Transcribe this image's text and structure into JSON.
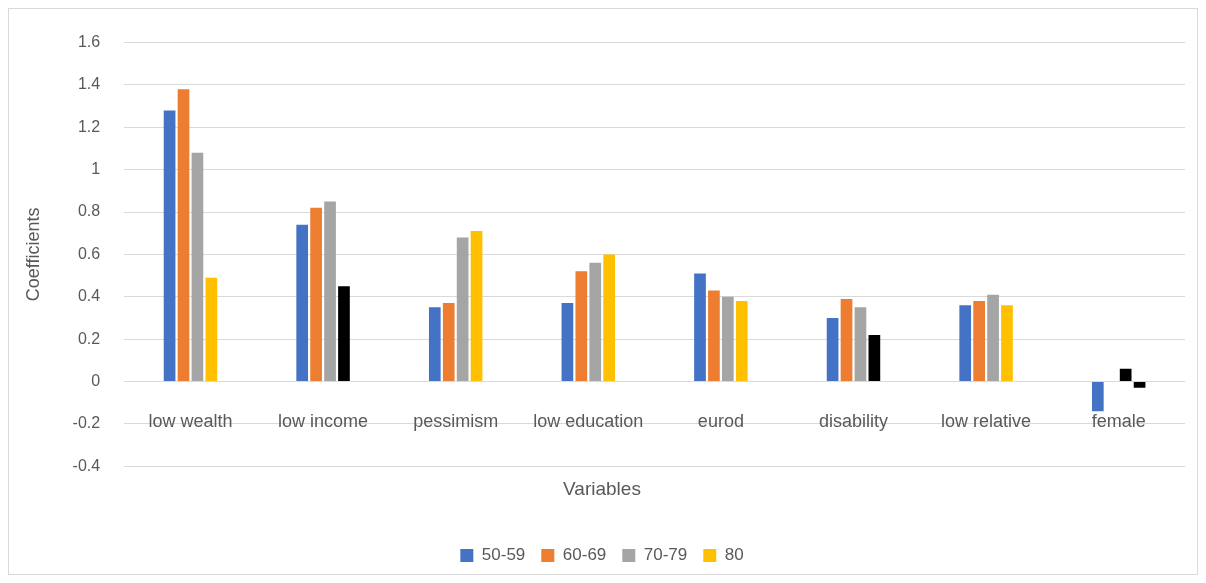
{
  "chart_data": {
    "type": "bar",
    "xlabel": "Variables",
    "ylabel": "Coefficients",
    "categories": [
      "low wealth",
      "low income",
      "pessimism",
      "low education",
      "eurod",
      "disability",
      "low relative",
      "female"
    ],
    "series": [
      {
        "name": "50-59",
        "color": "#4472c4",
        "values": [
          1.28,
          0.74,
          0.35,
          0.37,
          0.51,
          0.3,
          0.36,
          -0.14
        ]
      },
      {
        "name": "60-69",
        "color": "#ed7d31",
        "values": [
          1.38,
          0.82,
          0.37,
          0.52,
          0.43,
          0.39,
          0.38,
          null
        ]
      },
      {
        "name": "70-79",
        "color": "#a5a5a5",
        "colors": [
          "#a5a5a5",
          "#a5a5a5",
          "#a5a5a5",
          "#a5a5a5",
          "#a5a5a5",
          "#a5a5a5",
          "#a5a5a5",
          "#000000"
        ],
        "values": [
          1.08,
          0.85,
          0.68,
          0.56,
          0.4,
          0.35,
          0.41,
          0.06
        ]
      },
      {
        "name": "80",
        "color": "#ffc000",
        "colors": [
          "#ffc000",
          "#000000",
          "#ffc000",
          "#ffc000",
          "#ffc000",
          "#000000",
          "#ffc000",
          "#000000"
        ],
        "values": [
          0.49,
          0.45,
          0.71,
          0.6,
          0.38,
          0.22,
          0.36,
          -0.03
        ]
      }
    ],
    "ylim": [
      -0.4,
      1.6
    ],
    "yticks": [
      -0.4,
      -0.2,
      0,
      0.2,
      0.4,
      0.6,
      0.8,
      1,
      1.2,
      1.4,
      1.6
    ],
    "grid": "y",
    "legend": "bottom"
  }
}
